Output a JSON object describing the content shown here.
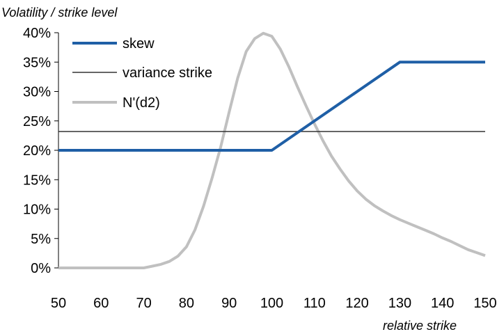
{
  "chart_data": {
    "type": "line",
    "ylabel": "Volatility / strike level",
    "xlabel": "relative strike",
    "xlim": [
      50,
      150
    ],
    "ylim": [
      0,
      40
    ],
    "x_ticks": [
      50,
      60,
      70,
      80,
      90,
      100,
      110,
      120,
      130,
      140,
      150
    ],
    "y_ticks": [
      0,
      5,
      10,
      15,
      20,
      25,
      30,
      35,
      40
    ],
    "y_tick_labels": [
      "0%",
      "5%",
      "10%",
      "15%",
      "20%",
      "25%",
      "30%",
      "35%",
      "40%"
    ],
    "grid": false,
    "legend_position": "top-left",
    "series": [
      {
        "name": "skew",
        "color": "#1f5fa6",
        "x": [
          50,
          100,
          130,
          150
        ],
        "y": [
          20,
          20,
          35,
          35
        ]
      },
      {
        "name": "variance strike",
        "color": "#333333",
        "x": [
          50,
          150
        ],
        "y": [
          23.2,
          23.2
        ]
      },
      {
        "name": "N'(d2)",
        "color": "#c0c0c0",
        "x": [
          50,
          70,
          72,
          74,
          76,
          78,
          80,
          82,
          84,
          86,
          88,
          90,
          92,
          94,
          96,
          98,
          100,
          102,
          104,
          106,
          108,
          110,
          112,
          114,
          116,
          118,
          120,
          122,
          124,
          126,
          128,
          130,
          132,
          134,
          136,
          138,
          140,
          142,
          144,
          146,
          148,
          150
        ],
        "y": [
          0,
          0,
          0.3,
          0.6,
          1.1,
          2.0,
          3.6,
          6.5,
          10.5,
          15.3,
          20.5,
          26.5,
          32.3,
          36.8,
          39.0,
          39.9,
          39.4,
          37.2,
          34.2,
          30.8,
          27.6,
          24.5,
          21.6,
          19.0,
          16.8,
          14.8,
          13.1,
          11.7,
          10.6,
          9.7,
          8.9,
          8.2,
          7.6,
          7.0,
          6.4,
          5.8,
          5.1,
          4.5,
          3.8,
          3.1,
          2.6,
          2.1
        ]
      }
    ]
  }
}
